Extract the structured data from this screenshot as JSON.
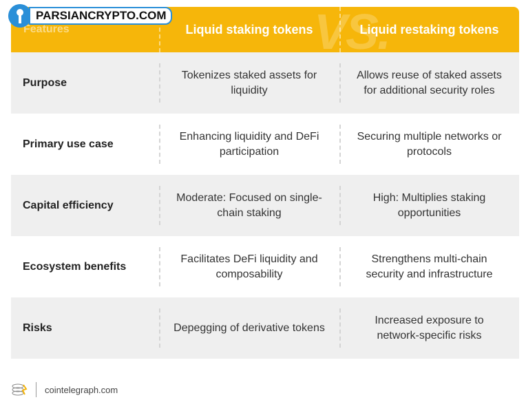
{
  "watermark": "PARSIANCRYPTO.COM",
  "header": {
    "vs_mark": "VS.",
    "columns": [
      "Features",
      "Liquid staking tokens",
      "Liquid restaking tokens"
    ]
  },
  "table": {
    "rows": [
      [
        "Purpose",
        "Tokenizes staked assets for liquidity",
        "Allows reuse of staked assets for additional security roles"
      ],
      [
        "Primary use case",
        "Enhancing liquidity and DeFi participation",
        "Securing multiple networks or protocols"
      ],
      [
        "Capital efficiency",
        "Moderate: Focused on single-chain staking",
        "High: Multiplies staking opportunities"
      ],
      [
        "Ecosystem benefits",
        "Facilitates DeFi liquidity and composability",
        "Strengthens multi-chain security and infrastructure"
      ],
      [
        "Risks",
        "Depegging of derivative tokens",
        "Increased exposure to network-specific risks"
      ]
    ]
  },
  "footer": {
    "source": "cointelegraph.com"
  }
}
